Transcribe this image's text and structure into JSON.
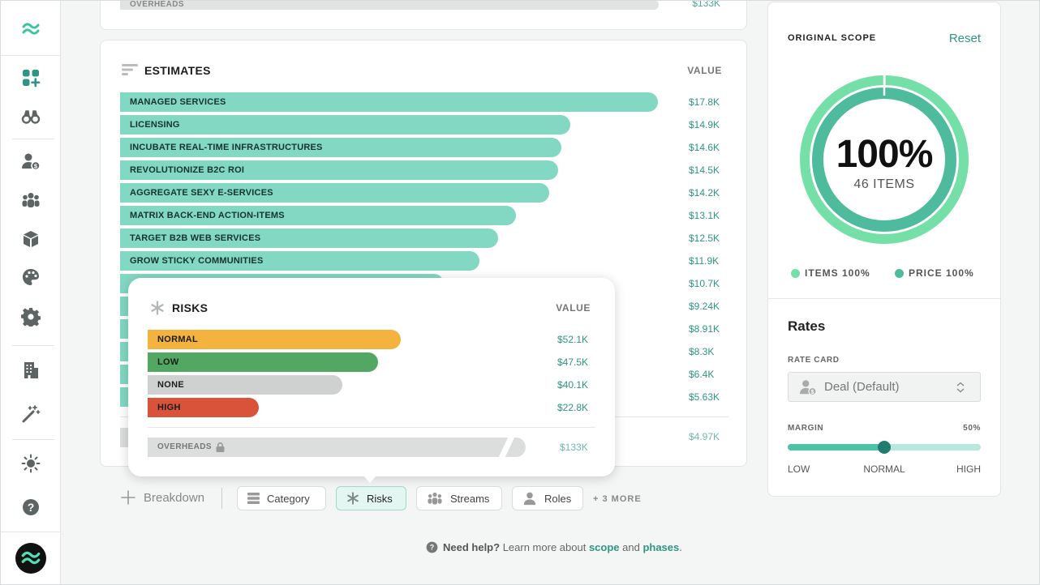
{
  "sidebar": {
    "items": [
      {
        "icon": "wave-logo-icon"
      },
      {
        "icon": "apps-add-icon"
      },
      {
        "icon": "binoculars-icon"
      },
      {
        "icon": "user-cost-icon"
      },
      {
        "icon": "team-icon"
      },
      {
        "icon": "cube-icon"
      },
      {
        "icon": "palette-icon"
      },
      {
        "icon": "gear-icon"
      },
      {
        "icon": "building-icon"
      },
      {
        "icon": "magic-wand-icon"
      },
      {
        "icon": "sun-icon"
      },
      {
        "icon": "help-icon"
      }
    ],
    "avatar_icon": "wave-logo-icon"
  },
  "previous_card": {
    "label": "OVERHEADS",
    "value": "$133K"
  },
  "estimates": {
    "title": "ESTIMATES",
    "value_header": "VALUE",
    "bar_color": "#82d8c3",
    "rows": [
      {
        "label": "MANAGED SERVICES",
        "value": "$17.8K",
        "amount": 17.8
      },
      {
        "label": "LICENSING",
        "value": "$14.9K",
        "amount": 14.9
      },
      {
        "label": "INCUBATE REAL-TIME INFRASTRUCTURES",
        "value": "$14.6K",
        "amount": 14.6
      },
      {
        "label": "REVOLUTIONIZE B2C ROI",
        "value": "$14.5K",
        "amount": 14.5
      },
      {
        "label": "AGGREGATE SEXY E-SERVICES",
        "value": "$14.2K",
        "amount": 14.2
      },
      {
        "label": "MATRIX BACK-END ACTION-ITEMS",
        "value": "$13.1K",
        "amount": 13.1
      },
      {
        "label": "TARGET B2B WEB SERVICES",
        "value": "$12.5K",
        "amount": 12.5
      },
      {
        "label": "GROW STICKY COMMUNITIES",
        "value": "$11.9K",
        "amount": 11.9
      },
      {
        "label": "",
        "value": "$10.7K",
        "amount": 10.7
      },
      {
        "label": "",
        "value": "$9.24K",
        "amount": 9.24
      },
      {
        "label": "",
        "value": "$8.91K",
        "amount": 8.91
      },
      {
        "label": "",
        "value": "$8.3K",
        "amount": 8.3
      },
      {
        "label": "",
        "value": "$6.4K",
        "amount": 6.4
      },
      {
        "label": "",
        "value": "$5.63K",
        "amount": 5.63
      }
    ],
    "overheads_value": "$4.97K"
  },
  "risks": {
    "title": "RISKS",
    "value_header": "VALUE",
    "rows": [
      {
        "label": "NORMAL",
        "value": "$52.1K",
        "amount": 52.1,
        "color": "#f4b23e"
      },
      {
        "label": "LOW",
        "value": "$47.5K",
        "amount": 47.5,
        "color": "#52a862"
      },
      {
        "label": "NONE",
        "value": "$40.1K",
        "amount": 40.1,
        "color": "#cfd1d1"
      },
      {
        "label": "HIGH",
        "value": "$22.8K",
        "amount": 22.8,
        "color": "#d9533a"
      }
    ],
    "overheads_label": "OVERHEADS",
    "overheads_value": "$133K"
  },
  "toolbar": {
    "breakdown_label": "Breakdown",
    "pills": [
      {
        "label": "Category",
        "icon": "category-icon",
        "active": false
      },
      {
        "label": "Risks",
        "icon": "asterisk-icon",
        "active": true
      },
      {
        "label": "Streams",
        "icon": "team-icon",
        "active": false
      },
      {
        "label": "Roles",
        "icon": "user-icon",
        "active": false
      }
    ],
    "more_label": "+ 3 MORE"
  },
  "help": {
    "prefix": "Need help?",
    "middle": " Learn more about ",
    "link1": "scope",
    "and": " and ",
    "link2": "phases",
    "suffix": "."
  },
  "scope": {
    "title": "ORIGINAL SCOPE",
    "reset_label": "Reset",
    "percent_label": "100%",
    "items_label": "46 ITEMS",
    "items_fraction": 1.0,
    "price_fraction": 1.0,
    "legend": [
      {
        "label": "ITEMS 100%",
        "color": "#74e0a8"
      },
      {
        "label": "PRICE 100%",
        "color": "#4dbb9c"
      }
    ]
  },
  "rates": {
    "title": "Rates",
    "rate_card_label": "RATE CARD",
    "rate_card_value": "Deal (Default)",
    "margin_label": "MARGIN",
    "margin_value": "50%",
    "margin_fraction": 0.5,
    "scale": {
      "low": "LOW",
      "normal": "NORMAL",
      "high": "HIGH"
    }
  },
  "colors": {
    "accent": "#2e9484",
    "teal_bar": "#82d8c3",
    "slider": "#4ec2a6"
  }
}
